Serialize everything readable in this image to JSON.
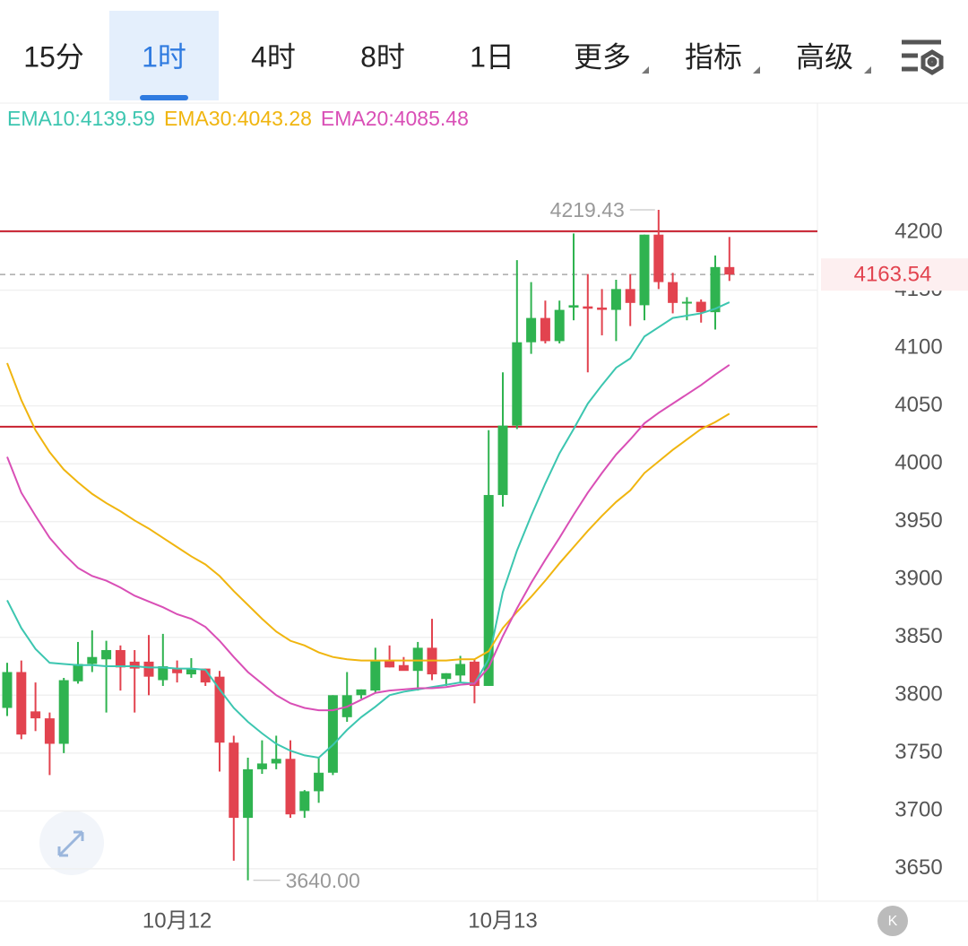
{
  "tabs": [
    "15分",
    "1时",
    "4时",
    "8时",
    "1日",
    "更多",
    "指标",
    "高级"
  ],
  "chart_data": {
    "type": "candlestick",
    "categories": [
      null,
      null,
      null,
      null,
      null,
      null,
      null,
      null,
      null,
      null,
      null,
      null,
      "10月12",
      null,
      null,
      null,
      null,
      null,
      null,
      null,
      null,
      null,
      null,
      null,
      null,
      null,
      null,
      null,
      null,
      null,
      null,
      null,
      null,
      null,
      null,
      "10月13",
      null,
      null,
      null,
      null,
      null,
      null,
      null,
      null,
      null,
      null,
      null,
      null,
      null,
      null,
      null,
      null
    ],
    "open": [
      3789,
      3820,
      3786,
      3780,
      3758,
      3812,
      3827,
      3831,
      3839,
      3829,
      3829,
      3813,
      3823,
      3818,
      3823,
      3816,
      3759,
      3694,
      3736,
      3741,
      3745,
      3700,
      3717,
      3733,
      3781,
      3800,
      3804,
      3830,
      3826,
      3821,
      3841,
      3814,
      3817,
      3829,
      3808,
      3973,
      4033,
      4105,
      4126,
      4106,
      4135,
      4136,
      4135,
      4133,
      4151,
      4137,
      4198,
      4157,
      4139,
      4140,
      4131,
      4170
    ],
    "high": [
      3828,
      3830,
      3811,
      3785,
      3815,
      3846,
      3856,
      3847,
      3843,
      3839,
      3852,
      3853,
      3830,
      3832,
      3823,
      3821,
      3765,
      3746,
      3761,
      3765,
      3761,
      3718,
      3746,
      3800,
      3820,
      3805,
      3841,
      3843,
      3833,
      3846,
      3866,
      3819,
      3834,
      3831,
      4029,
      4079,
      4176,
      4157,
      4141,
      4141,
      4199,
      4164,
      4151,
      4159,
      4164,
      4198,
      4219.43,
      4165,
      4144,
      4142,
      4180,
      4196
    ],
    "low": [
      3782,
      3762,
      3769,
      3731,
      3750,
      3810,
      3820,
      3785,
      3804,
      3785,
      3800,
      3808,
      3811,
      3815,
      3808,
      3734,
      3657,
      3640,
      3732,
      3736,
      3694,
      3694,
      3707,
      3731,
      3777,
      3797,
      3802,
      3824,
      3822,
      3804,
      3813,
      3808,
      3811,
      3793,
      3808,
      3963,
      4030,
      4095,
      4104,
      4104,
      4124,
      4079,
      4111,
      4106,
      4119,
      4124,
      4151,
      4130,
      4124,
      4122,
      4116,
      4158
    ],
    "close": [
      3820,
      3766,
      3780,
      3758,
      3813,
      3827,
      3833,
      3839,
      3824,
      3823,
      3816,
      3825,
      3819,
      3823,
      3811,
      3759,
      3694,
      3736,
      3741,
      3745,
      3697,
      3717,
      3733,
      3800,
      3800,
      3805,
      3830,
      3824,
      3821,
      3841,
      3818,
      3819,
      3827,
      3808,
      3973,
      4033,
      4105,
      4126,
      4106,
      4133,
      4137,
      4134,
      4133,
      4151,
      4139,
      4198,
      4157,
      4139,
      4140,
      4131,
      4170,
      4163.54
    ],
    "up_color": "#2fb350",
    "down_color": "#e2434f",
    "series": [
      {
        "name": "EMA10:4139.59",
        "color": "#3cc6b0",
        "values": [
          3882,
          3858,
          3840,
          3828,
          3827,
          3826,
          3826,
          3825,
          3825,
          3825,
          3824,
          3824,
          3823,
          3823,
          3822,
          3805,
          3789,
          3777,
          3767,
          3758,
          3752,
          3748,
          3746,
          3757,
          3770,
          3781,
          3790,
          3800,
          3803,
          3805,
          3807,
          3809,
          3811,
          3810,
          3831,
          3889,
          3925,
          3955,
          3983,
          4009,
          4030,
          4052,
          4068,
          4083,
          4091,
          4110,
          4118,
          4126,
          4128,
          4130,
          4134,
          4139.59
        ]
      },
      {
        "name": "EMA30:4043.28",
        "color": "#f0b50f",
        "values": [
          4087,
          4055,
          4029,
          4010,
          3995,
          3984,
          3974,
          3966,
          3959,
          3951,
          3944,
          3936,
          3928,
          3920,
          3913,
          3903,
          3890,
          3878,
          3866,
          3855,
          3847,
          3843,
          3837,
          3833,
          3831,
          3830,
          3830,
          3830,
          3830,
          3830,
          3830,
          3830,
          3831,
          3831,
          3838,
          3858,
          3872,
          3885,
          3899,
          3914,
          3928,
          3942,
          3955,
          3967,
          3977,
          3992,
          4002,
          4012,
          4021,
          4030,
          4036,
          4043.28
        ]
      },
      {
        "name": "EMA20:4085.48",
        "color": "#d94fb6",
        "values": [
          4006,
          3975,
          3955,
          3936,
          3922,
          3910,
          3903,
          3899,
          3893,
          3886,
          3881,
          3876,
          3870,
          3866,
          3859,
          3847,
          3833,
          3820,
          3810,
          3800,
          3793,
          3789,
          3787,
          3787,
          3790,
          3796,
          3802,
          3804,
          3805,
          3806,
          3806,
          3807,
          3809,
          3810,
          3824,
          3851,
          3875,
          3897,
          3917,
          3936,
          3956,
          3975,
          3992,
          4008,
          4021,
          4035,
          4044,
          4052,
          4060,
          4068,
          4077,
          4085.48
        ]
      }
    ],
    "ylim": [
      3622,
      4314
    ],
    "yticks": [
      3650,
      3700,
      3750,
      3800,
      3850,
      3900,
      3950,
      4000,
      4050,
      4100,
      4150,
      4200
    ],
    "grid": true,
    "hlines": [
      4201,
      4032
    ],
    "hline_color": "#c8202f",
    "last_price": 4163.54,
    "annotations": [
      {
        "value": 4219.43,
        "label": "4219.43"
      },
      {
        "value": 3640,
        "label": "3640.00"
      }
    ]
  }
}
